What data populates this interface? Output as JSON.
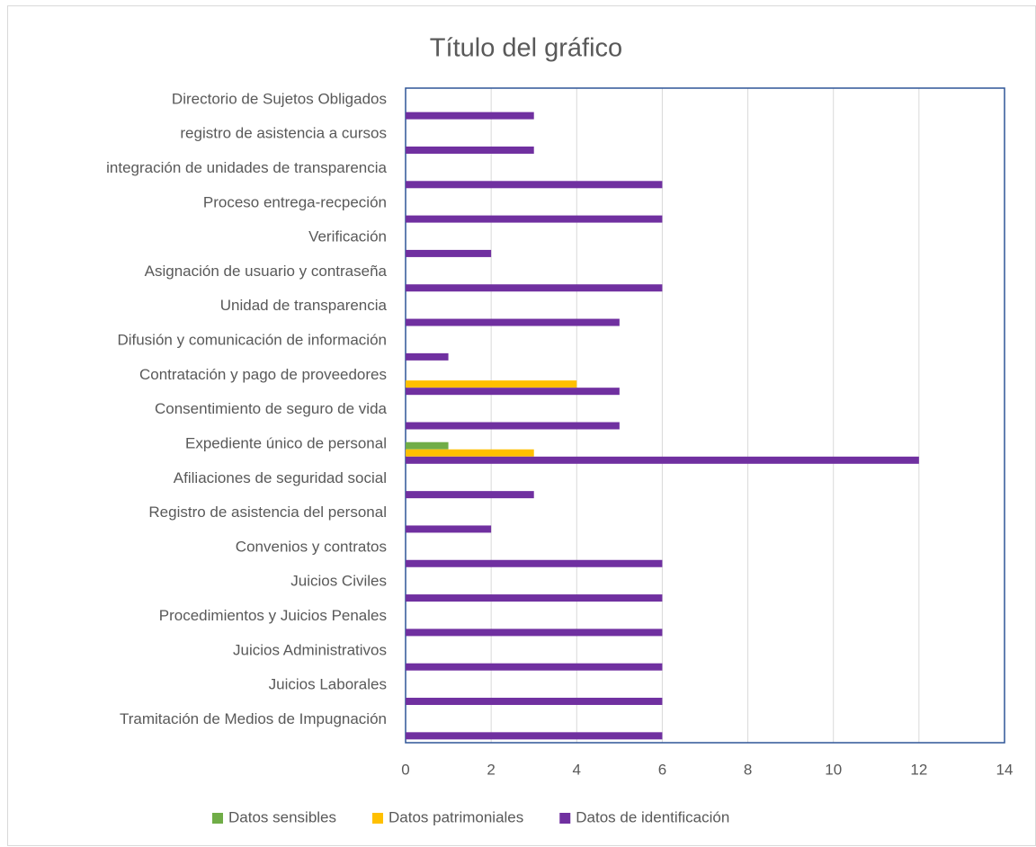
{
  "chart_data": {
    "type": "bar",
    "orientation": "horizontal",
    "title": "Título del gráfico",
    "categories": [
      "Directorio de Sujetos Obligados",
      "registro de asistencia a cursos",
      "integración de unidades de transparencia",
      "Proceso entrega-recpeción",
      "Verificación",
      "Asignación de usuario y contraseña",
      "Unidad de transparencia",
      "Difusión y comunicación de información",
      "Contratación y pago de proveedores",
      "Consentimiento de seguro de vida",
      "Expediente único de personal",
      "Afiliaciones de seguridad social",
      "Registro de asistencia del personal",
      "Convenios y contratos",
      "Juicios Civiles",
      "Procedimientos y Juicios Penales",
      "Juicios Administrativos",
      "Juicios Laborales",
      "Tramitación de Medios de Impugnación"
    ],
    "series": [
      {
        "name": "Datos sensibles",
        "color": "#70ad47",
        "values": [
          0,
          0,
          0,
          0,
          0,
          0,
          0,
          0,
          0,
          0,
          1,
          0,
          0,
          0,
          0,
          0,
          0,
          0,
          0
        ]
      },
      {
        "name": "Datos patrimoniales",
        "color": "#ffc000",
        "values": [
          0,
          0,
          0,
          0,
          0,
          0,
          0,
          0,
          4,
          0,
          3,
          0,
          0,
          0,
          0,
          0,
          0,
          0,
          0
        ]
      },
      {
        "name": "Datos de identificación",
        "color": "#7030a0",
        "values": [
          3,
          3,
          6,
          6,
          2,
          6,
          5,
          1,
          5,
          5,
          12,
          3,
          2,
          6,
          6,
          6,
          6,
          6,
          6
        ]
      }
    ],
    "xlim": [
      0,
      14
    ],
    "xticks": [
      0,
      2,
      4,
      6,
      8,
      10,
      12,
      14
    ],
    "grid": true,
    "legend": "bottom"
  }
}
